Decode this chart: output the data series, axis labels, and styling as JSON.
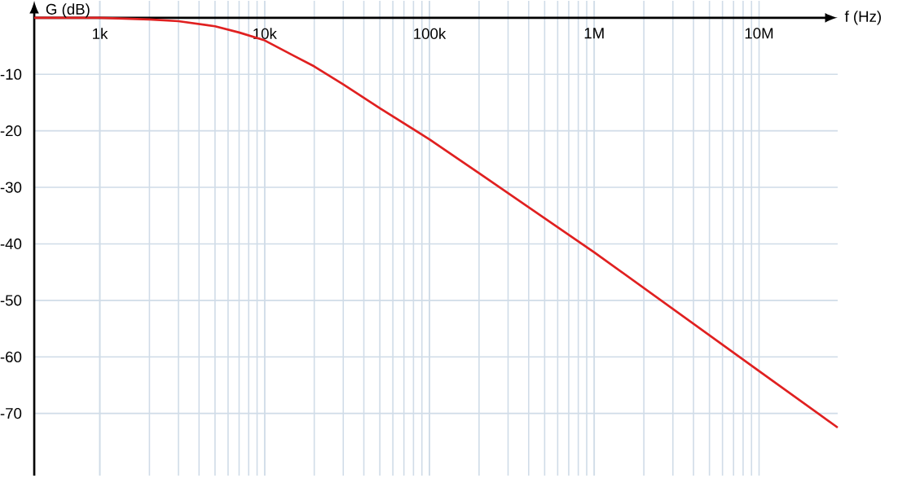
{
  "chart_data": {
    "type": "line",
    "xlabel": "f (Hz)",
    "ylabel": "G (dB)",
    "log": "x",
    "grid": true,
    "x": [
      400,
      1000,
      2000,
      3000,
      5000,
      7000,
      10000,
      15000,
      20000,
      30000,
      50000,
      100000,
      200000,
      1000000,
      10000000,
      30000000
    ],
    "series": [
      {
        "color": "#e02020",
        "values": [
          0,
          0,
          -0.3,
          -0.6,
          -1.5,
          -2.6,
          -4,
          -6.7,
          -8.6,
          -11.8,
          -16,
          -21.5,
          -27.5,
          -41.5,
          -62.5,
          -72.5
        ]
      }
    ],
    "xlim": [
      400,
      30000000
    ],
    "ylim": [
      -81,
      3
    ],
    "xticks": [
      {
        "value": 1000,
        "label": "1k"
      },
      {
        "value": 10000,
        "label": "10k"
      },
      {
        "value": 100000,
        "label": "100k"
      },
      {
        "value": 1000000,
        "label": "1M"
      },
      {
        "value": 10000000,
        "label": "10M"
      }
    ],
    "yticks": [
      -70,
      -60,
      -50,
      -40,
      -30,
      -20,
      -10
    ]
  }
}
